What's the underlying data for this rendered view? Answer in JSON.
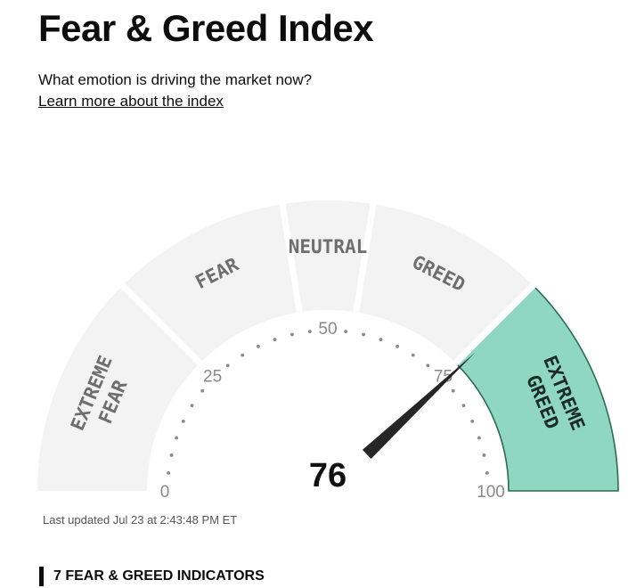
{
  "header": {
    "title": "Fear & Greed Index",
    "subtitle": "What emotion is driving the market now?",
    "learn_more_link": "Learn more about the index"
  },
  "gauge": {
    "score": 76,
    "score_label": "76",
    "active_segment": "EXTREME GREED",
    "segments": [
      {
        "name": "EXTREME FEAR",
        "lines": [
          "EXTREME",
          "FEAR"
        ],
        "range": [
          0,
          25
        ],
        "active": false
      },
      {
        "name": "FEAR",
        "lines": [
          "FEAR"
        ],
        "range": [
          25,
          45
        ],
        "active": false
      },
      {
        "name": "NEUTRAL",
        "lines": [
          "NEUTRAL"
        ],
        "range": [
          45,
          55
        ],
        "active": false
      },
      {
        "name": "GREED",
        "lines": [
          "GREED"
        ],
        "range": [
          55,
          75
        ],
        "active": false
      },
      {
        "name": "EXTREME GREED",
        "lines": [
          "EXTREME",
          "GREED"
        ],
        "range": [
          75,
          100
        ],
        "active": true
      }
    ],
    "tick_labels": [
      "0",
      "25",
      "50",
      "75",
      "100"
    ],
    "colors": {
      "inactive": "#f3f3f3",
      "active": "#8fd7c0",
      "active_border": "#2d6b55",
      "needle": "#262626"
    }
  },
  "last_updated": "Last updated Jul 23 at 2:43:48 PM ET",
  "indicators_heading": "7 FEAR & GREED INDICATORS"
}
